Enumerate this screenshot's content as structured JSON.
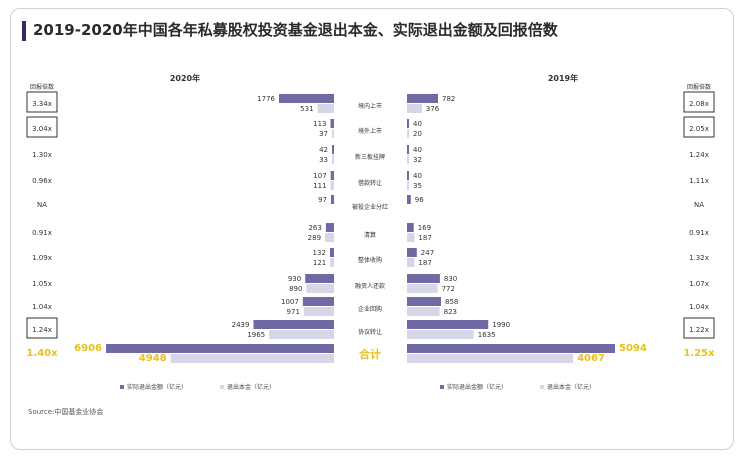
{
  "title": "2019-2020年中国各年私募股权投资基金退出本金、实际退出金额及回报倍数",
  "source": "Source:中国基金业协会",
  "colors": {
    "actual": "#6f6aa3",
    "principal": "#d6d6e6",
    "highlight": "#e8c21a",
    "text": "#333333"
  },
  "chart_data": {
    "type": "bar",
    "title": "2019-2020年中国各年私募股权投资基金退出本金、实际退出金额及回报倍数",
    "years": [
      "2020年",
      "2019年"
    ],
    "multiple_header": "回报倍数",
    "categories": [
      "境内上市",
      "境外上市",
      "新三板挂牌",
      "借款转让",
      "被投企业分红",
      "清算",
      "整体收购",
      "融资人还款",
      "企业回购",
      "协议转让",
      "合计"
    ],
    "series": [
      {
        "name": "实际退出金额（亿元）",
        "values_2020": [
          1776,
          113,
          42,
          107,
          97,
          263,
          132,
          930,
          1007,
          2439,
          6906
        ],
        "values_2019": [
          782,
          40,
          40,
          40,
          96,
          169,
          247,
          830,
          858,
          1990,
          5094
        ]
      },
      {
        "name": "退出本金（亿元）",
        "values_2020": [
          531,
          37,
          33,
          111,
          null,
          289,
          121,
          890,
          971,
          1965,
          4948
        ],
        "values_2019": [
          376,
          20,
          32,
          35,
          null,
          187,
          187,
          772,
          823,
          1635,
          4067
        ]
      }
    ],
    "multiples_2020": [
      "3.34x",
      "3.04x",
      "1.30x",
      "0.96x",
      "NA",
      "0.91x",
      "1.09x",
      "1.05x",
      "1.04x",
      "1.24x",
      "1.40x"
    ],
    "multiples_2019": [
      "2.08x",
      "2.05x",
      "1.24x",
      "1.11x",
      "NA",
      "0.91x",
      "1.32x",
      "1.07x",
      "1.04x",
      "1.22x",
      "1.25x"
    ],
    "boxed_2020": [
      0,
      1,
      9
    ],
    "boxed_2019": [
      0,
      1,
      9
    ],
    "legend": [
      "实际退出金额（亿元）",
      "退出本金（亿元）"
    ]
  }
}
